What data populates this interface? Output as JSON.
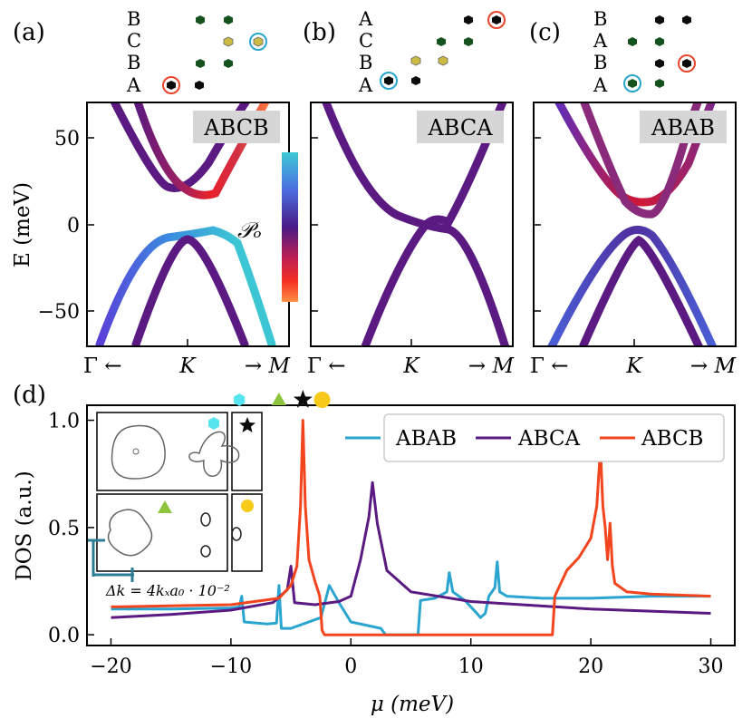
{
  "colors": {
    "ABAB": "#2aa5d0",
    "ABCA": "#5b1a82",
    "ABCB": "#f2441d",
    "atom_black": "#0b0b0b",
    "atom_green": "#14521e",
    "atom_yellow": "#cbbb45",
    "ring_red": "#e8452b",
    "ring_blue": "#2aa5d0",
    "marker_hex": "#56e4ee",
    "marker_tri": "#8cc43d",
    "marker_circle": "#f7ca1a",
    "inset_bar": "#2e7d96",
    "label_box": "#d6d6d6"
  },
  "panels": {
    "a": {
      "label": "(a)",
      "stack_name": "ABCB",
      "layers": [
        {
          "label": "B",
          "atoms": [
            "green",
            "green"
          ],
          "ring": null
        },
        {
          "label": "C",
          "atoms": [
            "yellow",
            "yellow"
          ],
          "ring": "blue"
        },
        {
          "label": "B",
          "atoms": [
            "green",
            "green"
          ],
          "ring": null
        },
        {
          "label": "A",
          "atoms": [
            "black",
            "black"
          ],
          "ring": "red"
        }
      ]
    },
    "b": {
      "label": "(b)",
      "stack_name": "ABCA",
      "layers": [
        {
          "label": "A",
          "atoms": [
            "black",
            "black"
          ],
          "ring": "red"
        },
        {
          "label": "C",
          "atoms": [
            "green",
            "green"
          ],
          "ring": null
        },
        {
          "label": "B",
          "atoms": [
            "yellow",
            "yellow"
          ],
          "ring": null
        },
        {
          "label": "A",
          "atoms": [
            "black",
            "black"
          ],
          "ring": "blue"
        }
      ]
    },
    "c": {
      "label": "(c)",
      "stack_name": "ABAB",
      "layers": [
        {
          "label": "B",
          "atoms": [
            "black",
            "black"
          ],
          "ring": null
        },
        {
          "label": "A",
          "atoms": [
            "green",
            "green"
          ],
          "ring": null
        },
        {
          "label": "B",
          "atoms": [
            "black",
            "black"
          ],
          "ring": "red"
        },
        {
          "label": "A",
          "atoms": [
            "green",
            "green"
          ],
          "ring": "blue"
        }
      ]
    },
    "d": {
      "label": "(d)",
      "inset_scale_label": "Δk = 4kₓa₀ · 10⁻²"
    }
  },
  "band_axes": {
    "ylabel": "E (meV)",
    "yticks": [
      "50",
      "0",
      "−50"
    ],
    "ytick_values": [
      50,
      0,
      -50
    ],
    "ylim": [
      -70,
      70
    ],
    "xtick_labels": [
      "Γ ←",
      "K",
      "→ M"
    ],
    "colorbar_label": "𝒫ₒ"
  },
  "chart_data": [
    {
      "type": "line",
      "title": "",
      "xlabel": "μ (meV)",
      "ylabel": "DOS (a.u.)",
      "xlim": [
        -22,
        32
      ],
      "ylim": [
        -0.05,
        1.07
      ],
      "xticks": [
        -20,
        -10,
        0,
        10,
        20,
        30
      ],
      "xtick_labels": [
        "−20",
        "−10",
        "0",
        "10",
        "20",
        "30"
      ],
      "yticks": [
        0.0,
        0.5,
        1.0
      ],
      "ytick_labels": [
        "0.0",
        "0.5",
        "1.0"
      ],
      "legend_position": "top-right",
      "series": [
        {
          "name": "ABAB",
          "color": "#2aa5d0",
          "x": [
            -20,
            -15,
            -10,
            -9.3,
            -9.1,
            -8.9,
            -7.0,
            -6.2,
            -6.0,
            -5.8,
            -5.0,
            -2.5,
            -1.8,
            -1.0,
            0,
            2.5,
            2.9,
            3.0,
            5.6,
            5.8,
            7.0,
            8.0,
            8.2,
            8.5,
            9.5,
            10.5,
            10.8,
            11.2,
            11.5,
            12.0,
            12.2,
            12.4,
            13.0,
            16.0,
            20.0,
            25.0,
            30.0
          ],
          "y": [
            0.12,
            0.12,
            0.125,
            0.13,
            0.18,
            0.06,
            0.05,
            0.055,
            0.23,
            0.03,
            0.03,
            0.08,
            0.23,
            0.15,
            0.06,
            0.03,
            0.0,
            0.0,
            0.0,
            0.16,
            0.17,
            0.2,
            0.29,
            0.2,
            0.16,
            0.1,
            0.08,
            0.1,
            0.18,
            0.22,
            0.34,
            0.2,
            0.18,
            0.17,
            0.17,
            0.18,
            0.18
          ]
        },
        {
          "name": "ABCA",
          "color": "#5b1a82",
          "x": [
            -20,
            -15,
            -10,
            -6.5,
            -5.3,
            -5.0,
            -4.7,
            -3.0,
            -1.0,
            0,
            0.8,
            1.5,
            1.8,
            2.2,
            3.0,
            5.0,
            10.0,
            20.0,
            30.0
          ],
          "y": [
            0.08,
            0.095,
            0.115,
            0.15,
            0.21,
            0.32,
            0.15,
            0.14,
            0.155,
            0.18,
            0.35,
            0.55,
            0.71,
            0.52,
            0.3,
            0.2,
            0.155,
            0.12,
            0.1
          ],
          "label_x": -17.5,
          "label_y": 0.18
        },
        {
          "name": "ABCB",
          "color": "#f2441d",
          "x": [
            -20,
            -10,
            -6.0,
            -5.0,
            -4.5,
            -4.2,
            -4.0,
            -3.8,
            -3.5,
            -3.0,
            -2.6,
            -2.4,
            -2.2,
            0,
            5.0,
            10.0,
            16.8,
            17.0,
            17.5,
            18.0,
            19.0,
            20.0,
            20.5,
            20.8,
            21.0,
            21.2,
            21.4,
            21.6,
            21.8,
            22.0,
            23.0,
            25.0,
            30.0
          ],
          "y": [
            0.13,
            0.14,
            0.17,
            0.23,
            0.32,
            0.6,
            1.0,
            0.6,
            0.35,
            0.25,
            0.18,
            0.02,
            0.0,
            0.0,
            0.0,
            0.0,
            0.0,
            0.18,
            0.24,
            0.3,
            0.36,
            0.45,
            0.6,
            0.87,
            0.6,
            0.5,
            0.35,
            0.52,
            0.32,
            0.24,
            0.2,
            0.19,
            0.18
          ]
        }
      ],
      "top_markers": [
        {
          "shape": "hexagon",
          "x": -9.3,
          "color": "#56e4ee"
        },
        {
          "shape": "triangle",
          "x": -6.0,
          "color": "#8cc43d"
        },
        {
          "shape": "star",
          "x": -4.0,
          "color": "#0b0b0b"
        },
        {
          "shape": "circle",
          "x": -2.4,
          "color": "#f7ca1a"
        }
      ]
    }
  ]
}
